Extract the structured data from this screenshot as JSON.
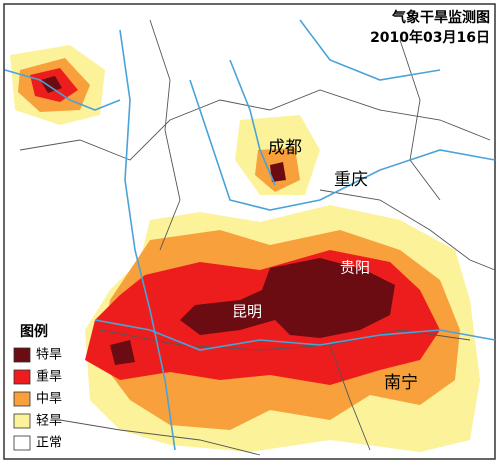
{
  "map": {
    "title": "气象干旱监测图",
    "date": "2010年03月16日",
    "cities": [
      {
        "label": "成都"
      },
      {
        "label": "重庆"
      },
      {
        "label": "贵阳"
      },
      {
        "label": "昆明"
      },
      {
        "label": "南宁"
      }
    ],
    "legend": {
      "title": "图例",
      "items": [
        {
          "label": "特旱",
          "color": "#6b0b12"
        },
        {
          "label": "重旱",
          "color": "#ee1d1d"
        },
        {
          "label": "中旱",
          "color": "#f7a03c"
        },
        {
          "label": "轻旱",
          "color": "#fbf29a"
        },
        {
          "label": "正常",
          "color": "#ffffff"
        }
      ]
    }
  }
}
